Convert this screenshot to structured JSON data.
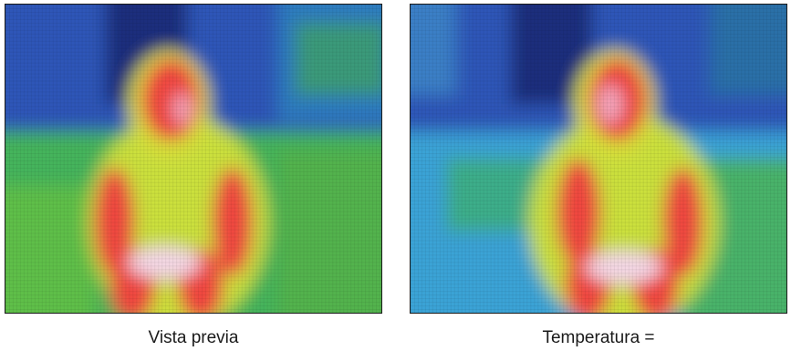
{
  "panels": {
    "left": {
      "caption": "Vista previa"
    },
    "right": {
      "caption": "Temperatura ="
    }
  },
  "thermal_palette": {
    "cold_dark": "#1c2f7d",
    "cold": "#2d57b8",
    "cool": "#3aa3d6",
    "mild": "#3fb26a",
    "warm": "#cfe23c",
    "hot": "#f0473f",
    "hottest": "#f4d7e6"
  }
}
